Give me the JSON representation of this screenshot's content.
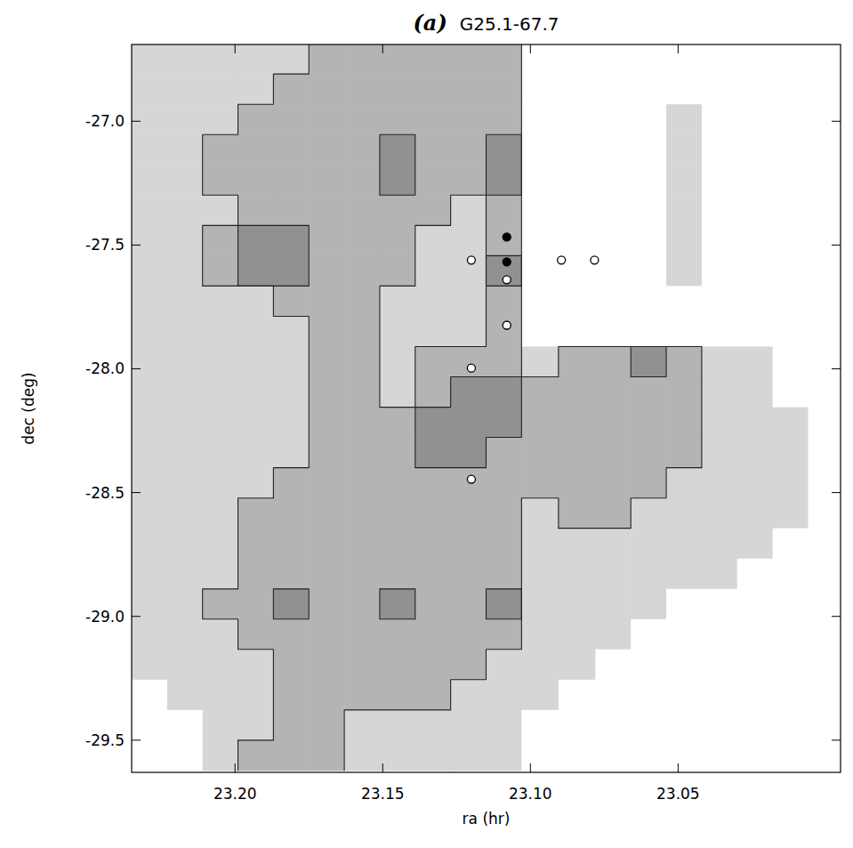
{
  "chart_data": {
    "type": "contour",
    "panel_label": "(a)",
    "title": "G25.1-67.7",
    "x_label": "ra (hr)",
    "y_label": "dec (deg)",
    "xlim": [
      23.235,
      22.995
    ],
    "ylim": [
      -26.69,
      -29.63
    ],
    "xticks": [
      {
        "value": 23.2,
        "label": "23.20"
      },
      23.15,
      {
        "value": 23.1,
        "label": "23.10"
      },
      23.05
    ],
    "yticks": [
      {
        "value": -27,
        "label": "-27.0"
      },
      -27.5,
      {
        "value": -28,
        "label": "-28.0"
      },
      -28.5,
      {
        "value": -29,
        "label": "-29.0"
      },
      -29.5
    ],
    "x": [
      23.229,
      23.217,
      23.205,
      23.193,
      23.181,
      23.169,
      23.157,
      23.145,
      23.133,
      23.121,
      23.109,
      23.097,
      23.084,
      23.072,
      23.06,
      23.048,
      23.036,
      23.024,
      23.012,
      23.0
    ],
    "y": [
      -26.748,
      -26.87,
      -26.993,
      -27.115,
      -27.237,
      -27.36,
      -27.482,
      -27.604,
      -27.727,
      -27.849,
      -27.971,
      -28.094,
      -28.216,
      -28.338,
      -28.461,
      -28.583,
      -28.705,
      -28.828,
      -28.95,
      -29.072,
      -29.194,
      -29.317,
      -29.439,
      -29.561
    ],
    "z": [
      [
        1,
        1,
        1,
        1,
        1,
        2,
        2,
        2,
        2,
        2,
        2,
        0,
        0,
        0,
        0,
        0,
        0,
        0,
        0,
        0
      ],
      [
        1,
        1,
        1,
        1,
        2,
        2,
        2,
        2,
        2,
        2,
        2,
        0,
        0,
        0,
        0,
        0,
        0,
        0,
        0,
        0
      ],
      [
        1,
        1,
        1,
        2,
        2,
        2,
        2,
        2,
        2,
        2,
        2,
        0,
        0,
        0,
        0,
        1,
        0,
        0,
        0,
        0
      ],
      [
        1,
        1,
        2,
        2,
        2,
        2,
        2,
        3,
        2,
        2,
        3,
        0,
        0,
        0,
        0,
        1,
        0,
        0,
        0,
        0
      ],
      [
        1,
        1,
        2,
        2,
        2,
        2,
        2,
        3,
        2,
        2,
        3,
        0,
        0,
        0,
        0,
        1,
        0,
        0,
        0,
        0
      ],
      [
        1,
        1,
        1,
        2,
        2,
        2,
        2,
        2,
        2,
        1,
        2,
        0,
        0,
        0,
        0,
        1,
        0,
        0,
        0,
        0
      ],
      [
        1,
        1,
        2,
        3,
        3,
        2,
        2,
        2,
        1,
        1,
        2,
        0,
        0,
        0,
        0,
        1,
        0,
        0,
        0,
        0
      ],
      [
        1,
        1,
        2,
        3,
        3,
        2,
        2,
        2,
        1,
        1,
        3,
        0,
        0,
        0,
        0,
        1,
        0,
        0,
        0,
        0
      ],
      [
        1,
        1,
        1,
        1,
        2,
        2,
        2,
        1,
        1,
        1,
        2,
        0,
        0,
        0,
        0,
        0,
        0,
        0,
        0,
        0
      ],
      [
        1,
        1,
        1,
        1,
        1,
        2,
        2,
        1,
        1,
        1,
        2,
        0,
        0,
        0,
        0,
        0,
        0,
        0,
        0,
        0
      ],
      [
        1,
        1,
        1,
        1,
        1,
        2,
        2,
        1,
        2,
        2,
        2,
        1,
        2,
        2,
        3,
        2,
        1,
        1,
        0,
        0
      ],
      [
        1,
        1,
        1,
        1,
        1,
        2,
        2,
        1,
        2,
        3,
        3,
        2,
        2,
        2,
        2,
        2,
        1,
        1,
        0,
        0
      ],
      [
        1,
        1,
        1,
        1,
        1,
        2,
        2,
        2,
        3,
        3,
        3,
        2,
        2,
        2,
        2,
        2,
        1,
        1,
        1,
        0
      ],
      [
        1,
        1,
        1,
        1,
        1,
        2,
        2,
        2,
        3,
        3,
        2,
        2,
        2,
        2,
        2,
        2,
        1,
        1,
        1,
        0
      ],
      [
        1,
        1,
        1,
        1,
        2,
        2,
        2,
        2,
        2,
        2,
        2,
        2,
        2,
        2,
        2,
        1,
        1,
        1,
        1,
        0
      ],
      [
        1,
        1,
        1,
        2,
        2,
        2,
        2,
        2,
        2,
        2,
        2,
        1,
        2,
        2,
        1,
        1,
        1,
        1,
        1,
        0
      ],
      [
        1,
        1,
        1,
        2,
        2,
        2,
        2,
        2,
        2,
        2,
        2,
        1,
        1,
        1,
        1,
        1,
        1,
        1,
        0,
        0
      ],
      [
        1,
        1,
        1,
        2,
        2,
        2,
        2,
        2,
        2,
        2,
        2,
        1,
        1,
        1,
        1,
        1,
        1,
        0,
        0,
        0
      ],
      [
        1,
        1,
        2,
        2,
        3,
        2,
        2,
        3,
        2,
        2,
        3,
        1,
        1,
        1,
        1,
        0,
        0,
        0,
        0,
        0
      ],
      [
        1,
        1,
        1,
        2,
        2,
        2,
        2,
        2,
        2,
        2,
        2,
        1,
        1,
        1,
        0,
        0,
        0,
        0,
        0,
        0
      ],
      [
        1,
        1,
        1,
        1,
        2,
        2,
        2,
        2,
        2,
        2,
        1,
        1,
        1,
        0,
        0,
        0,
        0,
        0,
        0,
        0
      ],
      [
        0,
        1,
        1,
        1,
        2,
        2,
        2,
        2,
        2,
        1,
        1,
        1,
        0,
        0,
        0,
        0,
        0,
        0,
        0,
        0
      ],
      [
        0,
        0,
        1,
        1,
        2,
        2,
        1,
        1,
        1,
        1,
        1,
        0,
        0,
        0,
        0,
        0,
        0,
        0,
        0,
        0
      ],
      [
        0,
        0,
        1,
        2,
        2,
        2,
        1,
        1,
        1,
        1,
        1,
        0,
        0,
        0,
        0,
        0,
        0,
        0,
        0,
        0
      ]
    ],
    "contour_levels": [
      2,
      3
    ],
    "colors": [
      "#ffffff",
      "#d6d6d6",
      "#b4b4b4",
      "#919191"
    ],
    "series": [
      {
        "type": "scatter",
        "marker": "filled-circle",
        "color": "#000000",
        "x": [
          23.108,
          23.108
        ],
        "values": [
          -27.468,
          -27.568
        ]
      },
      {
        "type": "scatter",
        "marker": "open-circle",
        "color": "#000000",
        "x": [
          23.12,
          23.0895,
          23.0783,
          23.108,
          23.108,
          23.12,
          23.12
        ],
        "values": [
          -27.561,
          -27.561,
          -27.561,
          -27.64,
          -27.824,
          -27.997,
          -28.446
        ]
      }
    ]
  }
}
